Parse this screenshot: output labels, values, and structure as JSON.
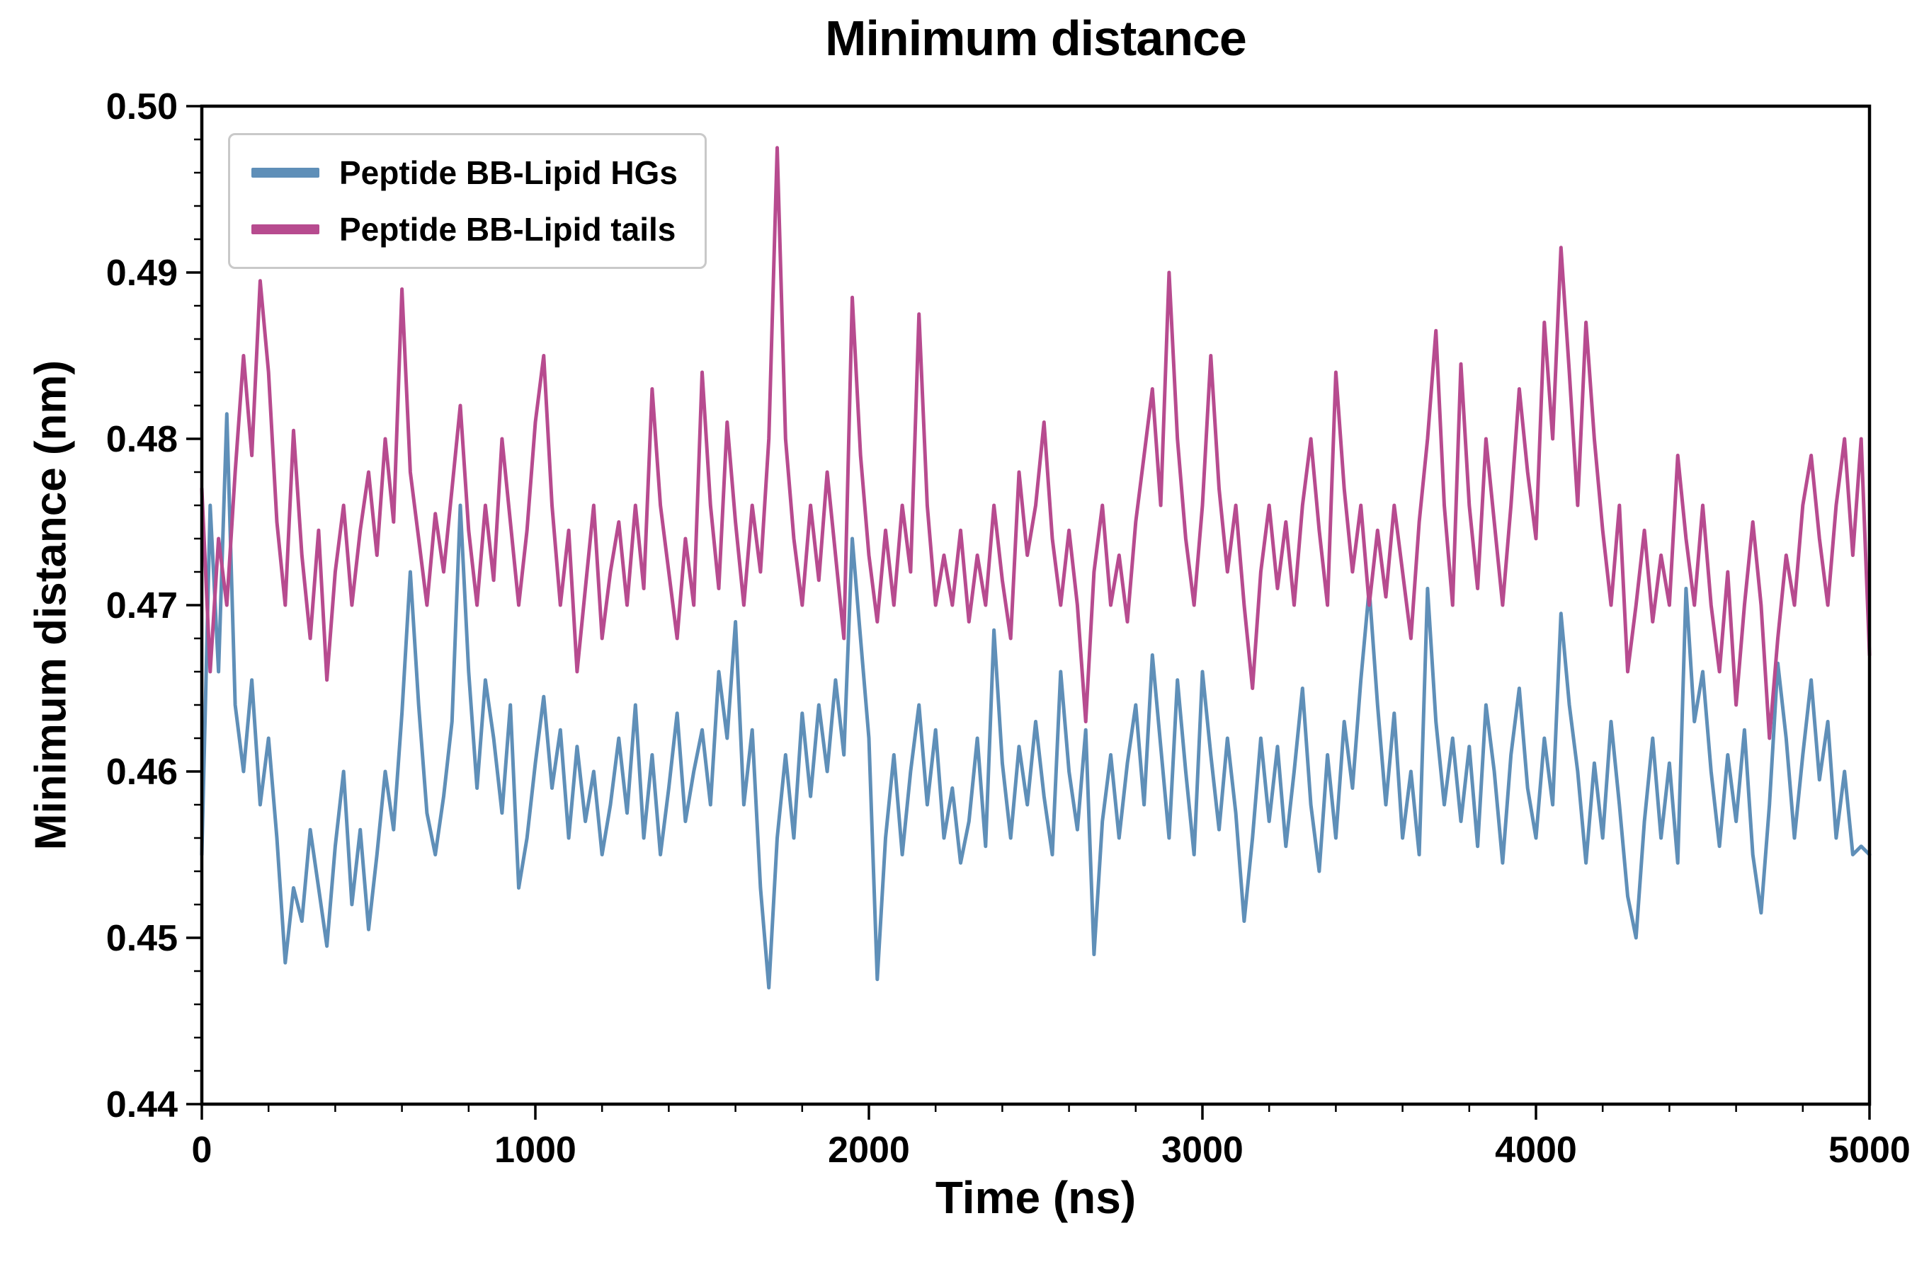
{
  "chart_data": {
    "type": "line",
    "title": "Minimum distance",
    "xlabel": "Time (ns)",
    "ylabel": "Minimum distance (nm)",
    "xlim": [
      0,
      5000
    ],
    "ylim": [
      0.44,
      0.5
    ],
    "x_ticks": [
      0,
      1000,
      2000,
      3000,
      4000,
      5000
    ],
    "x_tick_labels": [
      "0",
      "1000",
      "2000",
      "3000",
      "4000",
      "5000"
    ],
    "x_minor_step": 200,
    "y_ticks": [
      0.44,
      0.45,
      0.46,
      0.47,
      0.48,
      0.49,
      0.5
    ],
    "y_tick_labels": [
      "0.44",
      "0.45",
      "0.46",
      "0.47",
      "0.48",
      "0.49",
      "0.50"
    ],
    "y_minor_step": 0.002,
    "grid": false,
    "legend_position": "upper left",
    "x_start": 0,
    "x_step": 25,
    "series": [
      {
        "name": "Peptide BB-Lipid HGs",
        "color": "#5f8fb8",
        "values": [
          0.455,
          0.476,
          0.466,
          0.4815,
          0.464,
          0.46,
          0.4655,
          0.458,
          0.462,
          0.456,
          0.4485,
          0.453,
          0.451,
          0.4565,
          0.453,
          0.4495,
          0.4555,
          0.46,
          0.452,
          0.4565,
          0.4505,
          0.455,
          0.46,
          0.4565,
          0.4635,
          0.472,
          0.464,
          0.4575,
          0.455,
          0.4585,
          0.463,
          0.476,
          0.466,
          0.459,
          0.4655,
          0.462,
          0.4575,
          0.464,
          0.453,
          0.456,
          0.4605,
          0.4645,
          0.459,
          0.4625,
          0.456,
          0.4615,
          0.457,
          0.46,
          0.455,
          0.458,
          0.462,
          0.4575,
          0.464,
          0.456,
          0.461,
          0.455,
          0.459,
          0.4635,
          0.457,
          0.46,
          0.4625,
          0.458,
          0.466,
          0.462,
          0.469,
          0.458,
          0.4625,
          0.453,
          0.447,
          0.456,
          0.461,
          0.456,
          0.4635,
          0.4585,
          0.464,
          0.46,
          0.4655,
          0.461,
          0.474,
          0.468,
          0.462,
          0.4475,
          0.456,
          0.461,
          0.455,
          0.46,
          0.464,
          0.458,
          0.4625,
          0.456,
          0.459,
          0.4545,
          0.457,
          0.462,
          0.4555,
          0.4685,
          0.4605,
          0.456,
          0.4615,
          0.458,
          0.463,
          0.4585,
          0.455,
          0.466,
          0.46,
          0.4565,
          0.4625,
          0.449,
          0.457,
          0.461,
          0.456,
          0.4605,
          0.464,
          0.458,
          0.467,
          0.4615,
          0.456,
          0.4655,
          0.46,
          0.455,
          0.466,
          0.461,
          0.4565,
          0.462,
          0.4575,
          0.451,
          0.456,
          0.462,
          0.457,
          0.4615,
          0.4555,
          0.46,
          0.465,
          0.458,
          0.454,
          0.461,
          0.456,
          0.463,
          0.459,
          0.4655,
          0.471,
          0.464,
          0.458,
          0.4635,
          0.456,
          0.46,
          0.455,
          0.471,
          0.463,
          0.458,
          0.462,
          0.457,
          0.4615,
          0.4555,
          0.464,
          0.46,
          0.4545,
          0.461,
          0.465,
          0.459,
          0.456,
          0.462,
          0.458,
          0.4695,
          0.464,
          0.46,
          0.4545,
          0.4605,
          0.456,
          0.463,
          0.458,
          0.4525,
          0.45,
          0.457,
          0.462,
          0.456,
          0.4605,
          0.4545,
          0.471,
          0.463,
          0.466,
          0.46,
          0.4555,
          0.461,
          0.457,
          0.4625,
          0.455,
          0.4515,
          0.458,
          0.4665,
          0.462,
          0.456,
          0.461,
          0.4655,
          0.4595,
          0.463,
          0.456,
          0.46,
          0.455,
          0.4555,
          0.455
        ]
      },
      {
        "name": "Peptide BB-Lipid tails",
        "color": "#b74b8f",
        "values": [
          0.477,
          0.466,
          0.474,
          0.47,
          0.478,
          0.485,
          0.479,
          0.4895,
          0.484,
          0.475,
          0.47,
          0.4805,
          0.473,
          0.468,
          0.4745,
          0.4655,
          0.472,
          0.476,
          0.47,
          0.4745,
          0.478,
          0.473,
          0.48,
          0.475,
          0.489,
          0.478,
          0.474,
          0.47,
          0.4755,
          0.472,
          0.477,
          0.482,
          0.4745,
          0.47,
          0.476,
          0.4715,
          0.48,
          0.475,
          0.47,
          0.4745,
          0.481,
          0.485,
          0.476,
          0.47,
          0.4745,
          0.466,
          0.471,
          0.476,
          0.468,
          0.472,
          0.475,
          0.47,
          0.476,
          0.471,
          0.483,
          0.476,
          0.472,
          0.468,
          0.474,
          0.47,
          0.484,
          0.476,
          0.471,
          0.481,
          0.475,
          0.47,
          0.476,
          0.472,
          0.48,
          0.4975,
          0.48,
          0.474,
          0.47,
          0.476,
          0.4715,
          0.478,
          0.473,
          0.468,
          0.4885,
          0.479,
          0.473,
          0.469,
          0.4745,
          0.47,
          0.476,
          0.472,
          0.4875,
          0.476,
          0.47,
          0.473,
          0.47,
          0.4745,
          0.469,
          0.473,
          0.47,
          0.476,
          0.4715,
          0.468,
          0.478,
          0.473,
          0.476,
          0.481,
          0.474,
          0.47,
          0.4745,
          0.47,
          0.463,
          0.472,
          0.476,
          0.47,
          0.473,
          0.469,
          0.475,
          0.479,
          0.483,
          0.476,
          0.49,
          0.48,
          0.474,
          0.47,
          0.476,
          0.485,
          0.477,
          0.472,
          0.476,
          0.47,
          0.465,
          0.472,
          0.476,
          0.471,
          0.475,
          0.47,
          0.476,
          0.48,
          0.4745,
          0.47,
          0.484,
          0.477,
          0.472,
          0.476,
          0.47,
          0.4745,
          0.4705,
          0.476,
          0.472,
          0.468,
          0.475,
          0.48,
          0.4865,
          0.476,
          0.47,
          0.4845,
          0.476,
          0.471,
          0.48,
          0.475,
          0.47,
          0.476,
          0.483,
          0.478,
          0.474,
          0.487,
          0.48,
          0.4915,
          0.484,
          0.476,
          0.487,
          0.48,
          0.4745,
          0.47,
          0.476,
          0.466,
          0.47,
          0.4745,
          0.469,
          0.473,
          0.47,
          0.479,
          0.474,
          0.47,
          0.476,
          0.47,
          0.466,
          0.472,
          0.464,
          0.47,
          0.475,
          0.47,
          0.462,
          0.468,
          0.473,
          0.47,
          0.476,
          0.479,
          0.474,
          0.47,
          0.476,
          0.48,
          0.473,
          0.48,
          0.467
        ]
      }
    ]
  },
  "colors": {
    "axis": "#000000",
    "text": "#000000",
    "legend_border": "#c9c9c9",
    "background": "#ffffff"
  }
}
